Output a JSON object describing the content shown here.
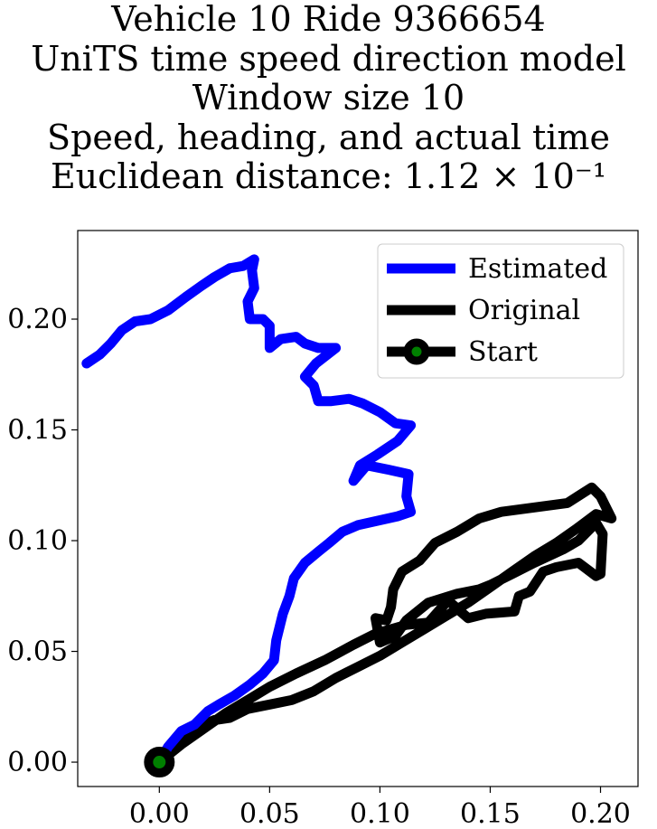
{
  "chart_data": {
    "type": "line",
    "title_lines": [
      "Vehicle 10 Ride 9366654",
      "UniTS time speed direction model",
      "Window size 10",
      "Speed, heading, and actual time",
      "Euclidean distance: 1.12 × 10⁻¹"
    ],
    "xlabel": "",
    "ylabel": "",
    "xlim": [
      -0.037,
      0.217
    ],
    "ylim": [
      -0.011,
      0.24
    ],
    "xticks": [
      0.0,
      0.05,
      0.1,
      0.15,
      0.2
    ],
    "xtick_labels": [
      "0.00",
      "0.05",
      "0.10",
      "0.15",
      "0.20"
    ],
    "yticks": [
      0.0,
      0.05,
      0.1,
      0.15,
      0.2
    ],
    "ytick_labels": [
      "0.00",
      "0.05",
      "0.10",
      "0.15",
      "0.20"
    ],
    "grid": false,
    "legend_position": "top-right",
    "colors": {
      "estimated": "#0000ff",
      "original": "#000000",
      "start_face": "#008000",
      "start_edge": "#000000"
    },
    "series": [
      {
        "name": "Estimated",
        "color": "#0000ff",
        "points": [
          [
            0.0,
            0.0
          ],
          [
            0.004,
            0.007
          ],
          [
            0.01,
            0.014
          ],
          [
            0.016,
            0.017
          ],
          [
            0.022,
            0.023
          ],
          [
            0.027,
            0.026
          ],
          [
            0.034,
            0.03
          ],
          [
            0.041,
            0.035
          ],
          [
            0.047,
            0.04
          ],
          [
            0.052,
            0.046
          ],
          [
            0.053,
            0.055
          ],
          [
            0.056,
            0.067
          ],
          [
            0.059,
            0.075
          ],
          [
            0.061,
            0.083
          ],
          [
            0.066,
            0.09
          ],
          [
            0.072,
            0.095
          ],
          [
            0.077,
            0.099
          ],
          [
            0.083,
            0.104
          ],
          [
            0.09,
            0.107
          ],
          [
            0.099,
            0.109
          ],
          [
            0.108,
            0.111
          ],
          [
            0.114,
            0.113
          ],
          [
            0.112,
            0.12
          ],
          [
            0.113,
            0.13
          ],
          [
            0.104,
            0.132
          ],
          [
            0.094,
            0.134
          ],
          [
            0.088,
            0.127
          ],
          [
            0.091,
            0.134
          ],
          [
            0.099,
            0.139
          ],
          [
            0.108,
            0.145
          ],
          [
            0.114,
            0.152
          ],
          [
            0.107,
            0.153
          ],
          [
            0.1,
            0.158
          ],
          [
            0.092,
            0.162
          ],
          [
            0.086,
            0.164
          ],
          [
            0.078,
            0.163
          ],
          [
            0.072,
            0.163
          ],
          [
            0.07,
            0.17
          ],
          [
            0.066,
            0.174
          ],
          [
            0.071,
            0.18
          ],
          [
            0.08,
            0.187
          ],
          [
            0.072,
            0.187
          ],
          [
            0.066,
            0.189
          ],
          [
            0.062,
            0.192
          ],
          [
            0.055,
            0.191
          ],
          [
            0.05,
            0.187
          ],
          [
            0.05,
            0.197
          ],
          [
            0.047,
            0.2
          ],
          [
            0.041,
            0.2
          ],
          [
            0.04,
            0.208
          ],
          [
            0.043,
            0.214
          ],
          [
            0.042,
            0.222
          ],
          [
            0.043,
            0.227
          ],
          [
            0.038,
            0.224
          ],
          [
            0.032,
            0.223
          ],
          [
            0.025,
            0.219
          ],
          [
            0.019,
            0.215
          ],
          [
            0.012,
            0.21
          ],
          [
            0.004,
            0.204
          ],
          [
            -0.004,
            0.2
          ],
          [
            -0.011,
            0.199
          ],
          [
            -0.017,
            0.195
          ],
          [
            -0.022,
            0.189
          ],
          [
            -0.027,
            0.184
          ],
          [
            -0.033,
            0.18
          ]
        ]
      },
      {
        "name": "Original",
        "color": "#000000",
        "points": [
          [
            0.0,
            0.0
          ],
          [
            0.008,
            0.008
          ],
          [
            0.015,
            0.013
          ],
          [
            0.02,
            0.017
          ],
          [
            0.025,
            0.019
          ],
          [
            0.032,
            0.02
          ],
          [
            0.04,
            0.024
          ],
          [
            0.05,
            0.026
          ],
          [
            0.06,
            0.028
          ],
          [
            0.07,
            0.032
          ],
          [
            0.08,
            0.038
          ],
          [
            0.09,
            0.043
          ],
          [
            0.1,
            0.048
          ],
          [
            0.11,
            0.054
          ],
          [
            0.12,
            0.06
          ],
          [
            0.13,
            0.066
          ],
          [
            0.14,
            0.072
          ],
          [
            0.15,
            0.079
          ],
          [
            0.16,
            0.086
          ],
          [
            0.17,
            0.093
          ],
          [
            0.18,
            0.099
          ],
          [
            0.19,
            0.106
          ],
          [
            0.198,
            0.112
          ],
          [
            0.205,
            0.11
          ],
          [
            0.2,
            0.12
          ],
          [
            0.196,
            0.124
          ],
          [
            0.185,
            0.117
          ],
          [
            0.17,
            0.115
          ],
          [
            0.155,
            0.113
          ],
          [
            0.145,
            0.11
          ],
          [
            0.135,
            0.104
          ],
          [
            0.125,
            0.099
          ],
          [
            0.118,
            0.091
          ],
          [
            0.11,
            0.086
          ],
          [
            0.106,
            0.078
          ],
          [
            0.105,
            0.07
          ],
          [
            0.103,
            0.064
          ],
          [
            0.098,
            0.065
          ],
          [
            0.1,
            0.054
          ],
          [
            0.107,
            0.057
          ],
          [
            0.112,
            0.064
          ],
          [
            0.122,
            0.072
          ],
          [
            0.135,
            0.076
          ],
          [
            0.145,
            0.078
          ],
          [
            0.15,
            0.08
          ],
          [
            0.16,
            0.085
          ],
          [
            0.17,
            0.09
          ],
          [
            0.183,
            0.096
          ],
          [
            0.19,
            0.1
          ],
          [
            0.198,
            0.108
          ],
          [
            0.201,
            0.103
          ],
          [
            0.2,
            0.085
          ],
          [
            0.198,
            0.084
          ],
          [
            0.19,
            0.09
          ],
          [
            0.18,
            0.088
          ],
          [
            0.174,
            0.086
          ],
          [
            0.168,
            0.077
          ],
          [
            0.163,
            0.075
          ],
          [
            0.161,
            0.068
          ],
          [
            0.148,
            0.067
          ],
          [
            0.14,
            0.065
          ],
          [
            0.132,
            0.072
          ],
          [
            0.13,
            0.072
          ],
          [
            0.122,
            0.063
          ],
          [
            0.112,
            0.062
          ],
          [
            0.098,
            0.058
          ],
          [
            0.088,
            0.053
          ],
          [
            0.075,
            0.046
          ],
          [
            0.062,
            0.04
          ],
          [
            0.05,
            0.034
          ],
          [
            0.04,
            0.028
          ],
          [
            0.03,
            0.022
          ],
          [
            0.02,
            0.015
          ],
          [
            0.01,
            0.008
          ],
          [
            0.0,
            0.0
          ]
        ]
      }
    ],
    "start_point": {
      "name": "Start",
      "x": 0.0,
      "y": 0.0
    }
  }
}
